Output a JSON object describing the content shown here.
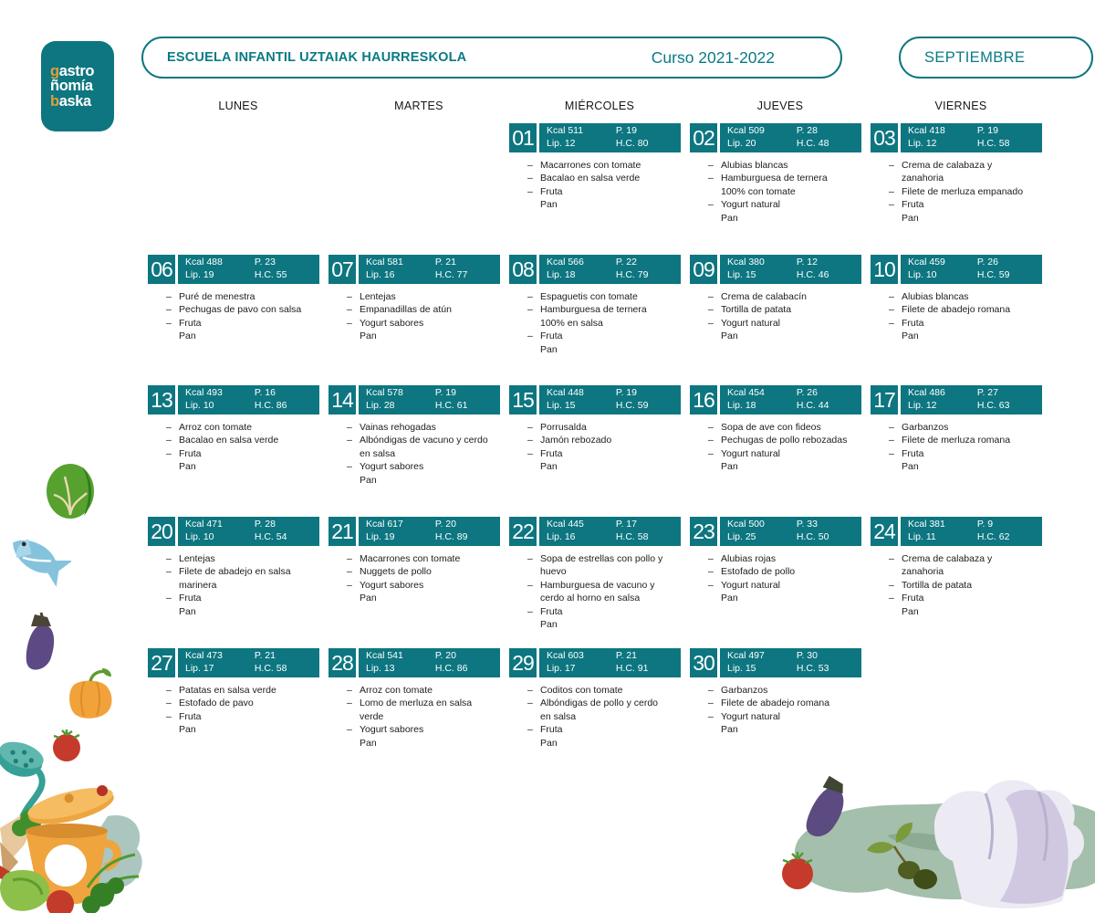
{
  "logo": {
    "lines": [
      {
        "first": "g",
        "rest": "astro",
        "first_color": "orange"
      },
      {
        "first": "ñ",
        "rest": "omía",
        "first_color": "white"
      },
      {
        "first": "b",
        "rest": "aska",
        "first_color": "orange"
      }
    ]
  },
  "header": {
    "school": "ESCUELA INFANTIL UZTAIAK HAURRESKOLA",
    "course": "Curso 2021-2022",
    "month": "SEPTIEMBRE"
  },
  "weekdays": [
    "LUNES",
    "MARTES",
    "MIÉRCOLES",
    "JUEVES",
    "VIERNES"
  ],
  "colors": {
    "teal": "#0d7680",
    "title_text": "#0a7a85",
    "logo_orange": "#dd9f3d",
    "menu_text": "#1d1d1b"
  },
  "days": [
    {
      "num": "01",
      "col": 3,
      "row": 1,
      "kcal": "Kcal 511",
      "p": "P. 19",
      "lip": "Lip. 12",
      "hc": "H.C. 80",
      "items": [
        {
          "t": "Macarrones con tomate",
          "d": true
        },
        {
          "t": "Bacalao en salsa verde",
          "d": true
        },
        {
          "t": "Fruta",
          "d": true
        },
        {
          "t": "Pan",
          "d": false
        }
      ]
    },
    {
      "num": "02",
      "col": 4,
      "row": 1,
      "kcal": "Kcal 509",
      "p": "P. 28",
      "lip": "Lip. 20",
      "hc": "H.C. 48",
      "items": [
        {
          "t": "Alubias blancas",
          "d": true
        },
        {
          "t": "Hamburguesa de ternera 100% con tomate",
          "d": true
        },
        {
          "t": "Yogurt natural",
          "d": true
        },
        {
          "t": "Pan",
          "d": false
        }
      ]
    },
    {
      "num": "03",
      "col": 5,
      "row": 1,
      "kcal": "Kcal 418",
      "p": "P. 19",
      "lip": "Lip. 12",
      "hc": "H.C. 58",
      "items": [
        {
          "t": "Crema de calabaza y zanahoria",
          "d": true
        },
        {
          "t": "Filete de merluza empanado",
          "d": true
        },
        {
          "t": "Fruta",
          "d": true
        },
        {
          "t": "Pan",
          "d": false
        }
      ]
    },
    {
      "num": "06",
      "col": 1,
      "row": 2,
      "kcal": "Kcal 488",
      "p": "P. 23",
      "lip": "Lip. 19",
      "hc": "H.C. 55",
      "items": [
        {
          "t": "Puré de menestra",
          "d": true
        },
        {
          "t": "Pechugas de pavo con salsa",
          "d": true
        },
        {
          "t": "Fruta",
          "d": true
        },
        {
          "t": "Pan",
          "d": false
        }
      ]
    },
    {
      "num": "07",
      "col": 2,
      "row": 2,
      "kcal": "Kcal 581",
      "p": "P. 21",
      "lip": "Lip. 16",
      "hc": "H.C. 77",
      "items": [
        {
          "t": "Lentejas",
          "d": true
        },
        {
          "t": "Empanadillas de atún",
          "d": true
        },
        {
          "t": "Yogurt sabores",
          "d": true
        },
        {
          "t": "Pan",
          "d": false
        }
      ]
    },
    {
      "num": "08",
      "col": 3,
      "row": 2,
      "kcal": "Kcal 566",
      "p": "P. 22",
      "lip": "Lip. 18",
      "hc": "H.C. 79",
      "items": [
        {
          "t": "Espaguetis con tomate",
          "d": true
        },
        {
          "t": "Hamburguesa de ternera 100% en salsa",
          "d": true
        },
        {
          "t": "Fruta",
          "d": true
        },
        {
          "t": "Pan",
          "d": false
        }
      ]
    },
    {
      "num": "09",
      "col": 4,
      "row": 2,
      "kcal": "Kcal 380",
      "p": "P. 12",
      "lip": "Lip. 15",
      "hc": "H.C. 46",
      "items": [
        {
          "t": "Crema de calabacín",
          "d": true
        },
        {
          "t": "Tortilla de patata",
          "d": true
        },
        {
          "t": "Yogurt natural",
          "d": true
        },
        {
          "t": "Pan",
          "d": false
        }
      ]
    },
    {
      "num": "10",
      "col": 5,
      "row": 2,
      "kcal": "Kcal 459",
      "p": "P. 26",
      "lip": "Lip. 10",
      "hc": "H.C. 59",
      "items": [
        {
          "t": "Alubias blancas",
          "d": true
        },
        {
          "t": "Filete de abadejo romana",
          "d": true
        },
        {
          "t": "Fruta",
          "d": true
        },
        {
          "t": "Pan",
          "d": false
        }
      ]
    },
    {
      "num": "13",
      "col": 1,
      "row": 3,
      "kcal": "Kcal 493",
      "p": "P. 16",
      "lip": "Lip. 10",
      "hc": "H.C. 86",
      "items": [
        {
          "t": "Arroz con tomate",
          "d": true
        },
        {
          "t": "Bacalao en salsa verde",
          "d": true
        },
        {
          "t": "Fruta",
          "d": true
        },
        {
          "t": "Pan",
          "d": false
        }
      ]
    },
    {
      "num": "14",
      "col": 2,
      "row": 3,
      "kcal": "Kcal 578",
      "p": "P. 19",
      "lip": "Lip. 28",
      "hc": "H.C. 61",
      "items": [
        {
          "t": "Vainas rehogadas",
          "d": true
        },
        {
          "t": "Albóndigas de vacuno y cerdo en salsa",
          "d": true
        },
        {
          "t": "Yogurt sabores",
          "d": true
        },
        {
          "t": "Pan",
          "d": false
        }
      ]
    },
    {
      "num": "15",
      "col": 3,
      "row": 3,
      "kcal": "Kcal 448",
      "p": "P. 19",
      "lip": "Lip. 15",
      "hc": "H.C. 59",
      "items": [
        {
          "t": "Porrusalda",
          "d": true
        },
        {
          "t": "Jamón rebozado",
          "d": true
        },
        {
          "t": "Fruta",
          "d": true
        },
        {
          "t": "Pan",
          "d": false
        }
      ]
    },
    {
      "num": "16",
      "col": 4,
      "row": 3,
      "kcal": "Kcal 454",
      "p": "P. 26",
      "lip": "Lip. 18",
      "hc": "H.C. 44",
      "items": [
        {
          "t": "Sopa de ave con fideos",
          "d": true
        },
        {
          "t": "Pechugas de pollo rebozadas",
          "d": true
        },
        {
          "t": "Yogurt natural",
          "d": true
        },
        {
          "t": "Pan",
          "d": false
        }
      ]
    },
    {
      "num": "17",
      "col": 5,
      "row": 3,
      "kcal": "Kcal 486",
      "p": "P. 27",
      "lip": "Lip. 12",
      "hc": "H.C. 63",
      "items": [
        {
          "t": "Garbanzos",
          "d": true
        },
        {
          "t": "Filete de merluza romana",
          "d": true
        },
        {
          "t": "Fruta",
          "d": true
        },
        {
          "t": "Pan",
          "d": false
        }
      ]
    },
    {
      "num": "20",
      "col": 1,
      "row": 4,
      "kcal": "Kcal 471",
      "p": "P. 28",
      "lip": "Lip. 10",
      "hc": "H.C. 54",
      "items": [
        {
          "t": "Lentejas",
          "d": true
        },
        {
          "t": "Filete de abadejo en salsa marinera",
          "d": true
        },
        {
          "t": "Fruta",
          "d": true
        },
        {
          "t": "Pan",
          "d": false
        }
      ]
    },
    {
      "num": "21",
      "col": 2,
      "row": 4,
      "kcal": "Kcal 617",
      "p": "P. 20",
      "lip": "Lip. 19",
      "hc": "H.C. 89",
      "items": [
        {
          "t": "Macarrones con tomate",
          "d": true
        },
        {
          "t": "Nuggets de pollo",
          "d": true
        },
        {
          "t": "Yogurt sabores",
          "d": true
        },
        {
          "t": "Pan",
          "d": false
        }
      ]
    },
    {
      "num": "22",
      "col": 3,
      "row": 4,
      "kcal": "Kcal 445",
      "p": "P. 17",
      "lip": "Lip. 16",
      "hc": "H.C. 58",
      "items": [
        {
          "t": "Sopa de estrellas con pollo y huevo",
          "d": true
        },
        {
          "t": "Hamburguesa de vacuno y cerdo al horno en salsa",
          "d": true
        },
        {
          "t": "Fruta",
          "d": true
        },
        {
          "t": "Pan",
          "d": false
        }
      ]
    },
    {
      "num": "23",
      "col": 4,
      "row": 4,
      "kcal": "Kcal 500",
      "p": "P. 33",
      "lip": "Lip. 25",
      "hc": "H.C. 50",
      "items": [
        {
          "t": "Alubias rojas",
          "d": true
        },
        {
          "t": "Estofado de pollo",
          "d": true
        },
        {
          "t": "Yogurt natural",
          "d": true
        },
        {
          "t": "Pan",
          "d": false
        }
      ]
    },
    {
      "num": "24",
      "col": 5,
      "row": 4,
      "kcal": "Kcal 381",
      "p": "P. 9",
      "lip": "Lip. 11",
      "hc": "H.C. 62",
      "items": [
        {
          "t": "Crema de calabaza y zanahoria",
          "d": true
        },
        {
          "t": "Tortilla de patata",
          "d": true
        },
        {
          "t": "Fruta",
          "d": true
        },
        {
          "t": "Pan",
          "d": false
        }
      ]
    },
    {
      "num": "27",
      "col": 1,
      "row": 5,
      "kcal": "Kcal 473",
      "p": "P. 21",
      "lip": "Lip. 17",
      "hc": "H.C. 58",
      "items": [
        {
          "t": "Patatas en salsa verde",
          "d": true
        },
        {
          "t": "Estofado de pavo",
          "d": true
        },
        {
          "t": "Fruta",
          "d": true
        },
        {
          "t": "Pan",
          "d": false
        }
      ]
    },
    {
      "num": "28",
      "col": 2,
      "row": 5,
      "kcal": "Kcal 541",
      "p": "P. 20",
      "lip": "Lip. 13",
      "hc": "H.C. 86",
      "items": [
        {
          "t": "Arroz con tomate",
          "d": true
        },
        {
          "t": "Lomo de merluza en salsa verde",
          "d": true
        },
        {
          "t": "Yogurt sabores",
          "d": true
        },
        {
          "t": "Pan",
          "d": false
        }
      ]
    },
    {
      "num": "29",
      "col": 3,
      "row": 5,
      "kcal": "Kcal 603",
      "p": "P. 21",
      "lip": "Lip. 17",
      "hc": "H.C. 91",
      "items": [
        {
          "t": "Coditos con tomate",
          "d": true
        },
        {
          "t": "Albóndigas de pollo y cerdo en salsa",
          "d": true
        },
        {
          "t": "Fruta",
          "d": true
        },
        {
          "t": "Pan",
          "d": false
        }
      ]
    },
    {
      "num": "30",
      "col": 4,
      "row": 5,
      "kcal": "Kcal 497",
      "p": "P. 30",
      "lip": "Lip. 15",
      "hc": "H.C. 53",
      "items": [
        {
          "t": "Garbanzos",
          "d": true
        },
        {
          "t": "Filete de abadejo romana",
          "d": true
        },
        {
          "t": "Yogurt natural",
          "d": true
        },
        {
          "t": "Pan",
          "d": false
        }
      ]
    }
  ]
}
